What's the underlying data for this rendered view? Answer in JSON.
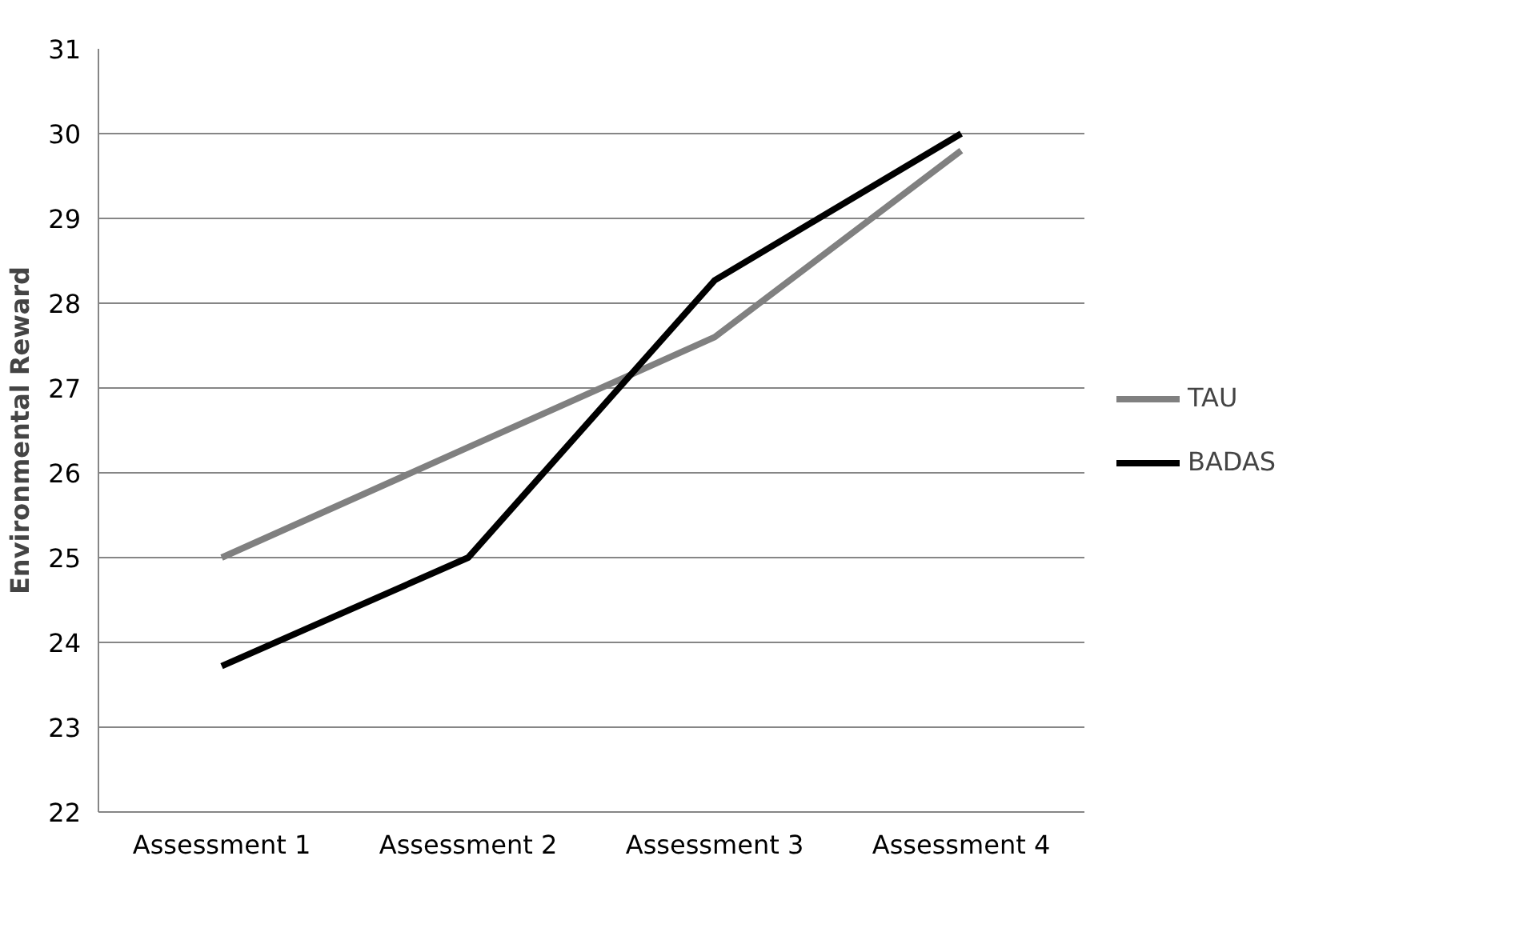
{
  "chart_data": {
    "type": "line",
    "ylabel": "Environmental Reward",
    "categories": [
      "Assessment 1",
      "Assessment 2",
      "Assessment 3",
      "Assessment 4"
    ],
    "series": [
      {
        "name": "TAU",
        "color": "#808080",
        "values": [
          25.0,
          26.3,
          27.6,
          29.8
        ]
      },
      {
        "name": "BADAS",
        "color": "#000000",
        "values": [
          23.72,
          25.0,
          28.27,
          30.0
        ]
      }
    ],
    "ylim": [
      22,
      31
    ],
    "yticks": [
      22,
      23,
      24,
      25,
      26,
      27,
      28,
      29,
      30,
      31
    ],
    "grid": "y",
    "legend": "right",
    "marker": "none",
    "line_style": "solid"
  }
}
